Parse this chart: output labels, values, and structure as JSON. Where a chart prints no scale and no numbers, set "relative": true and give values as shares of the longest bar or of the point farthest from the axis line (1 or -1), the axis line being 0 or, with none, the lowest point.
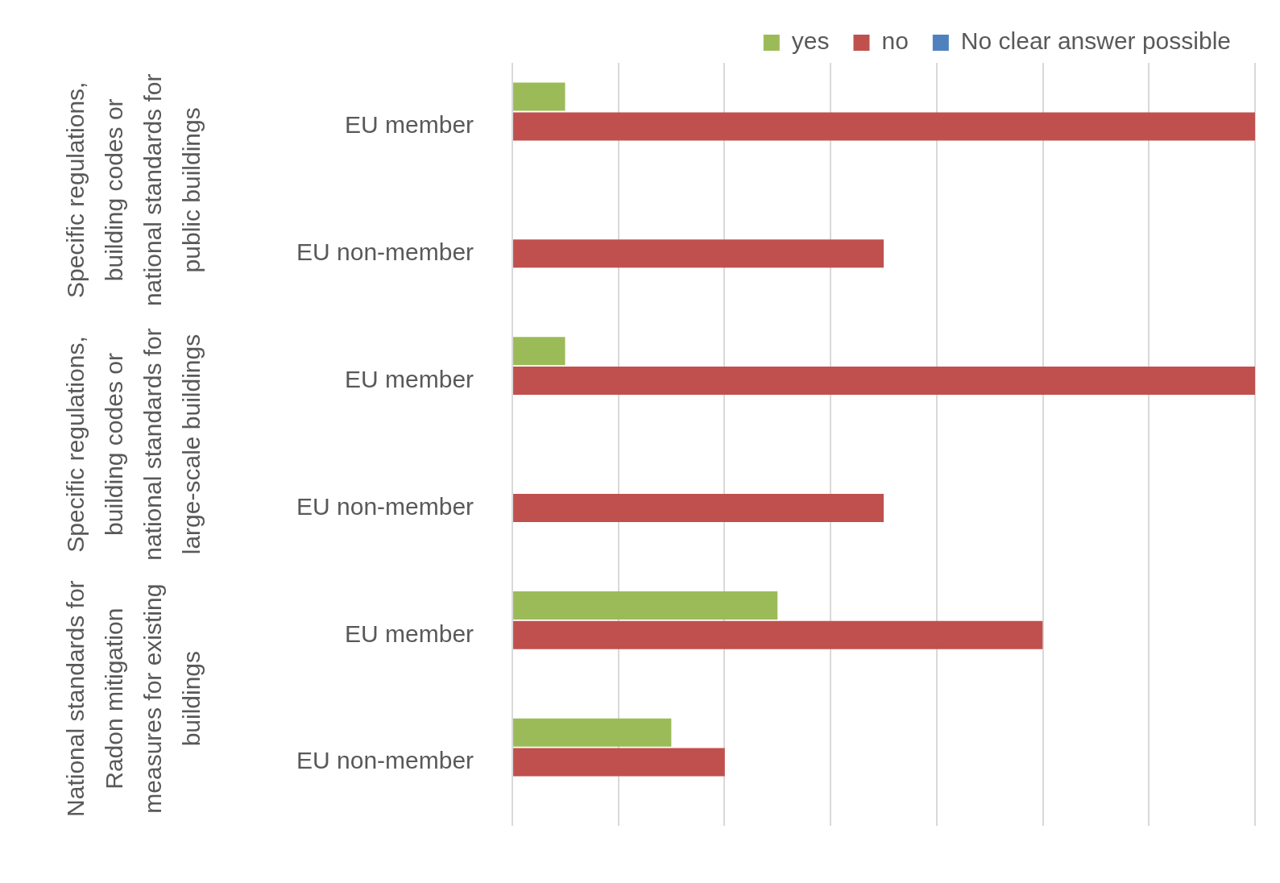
{
  "chart_data": {
    "type": "bar",
    "orientation": "horizontal",
    "relative": true,
    "grid": "x",
    "legend": "top right",
    "categories": [
      "EU member",
      "EU non-member",
      "EU member",
      "EU non-member",
      "EU member",
      "EU non-member"
    ],
    "series": [
      {
        "name": "yes",
        "color": "#9bbb59",
        "values": [
          0.071,
          0,
          0.071,
          0,
          0.357,
          0.214
        ]
      },
      {
        "name": "no",
        "color": "#c0504d",
        "values": [
          1,
          0.5,
          1,
          0.5,
          0.714,
          0.286
        ]
      },
      {
        "name": "No clear answer possible",
        "color": "#4f81bd",
        "values": [
          0,
          0,
          0,
          0,
          0,
          0
        ]
      }
    ],
    "annotations": [
      "Specific regulations, building codes or national standards for public buildings",
      "Specific regulations, building codes or national standards for large-scale buildings",
      "National standards for Radon mitigation measures for existing buildings"
    ]
  }
}
